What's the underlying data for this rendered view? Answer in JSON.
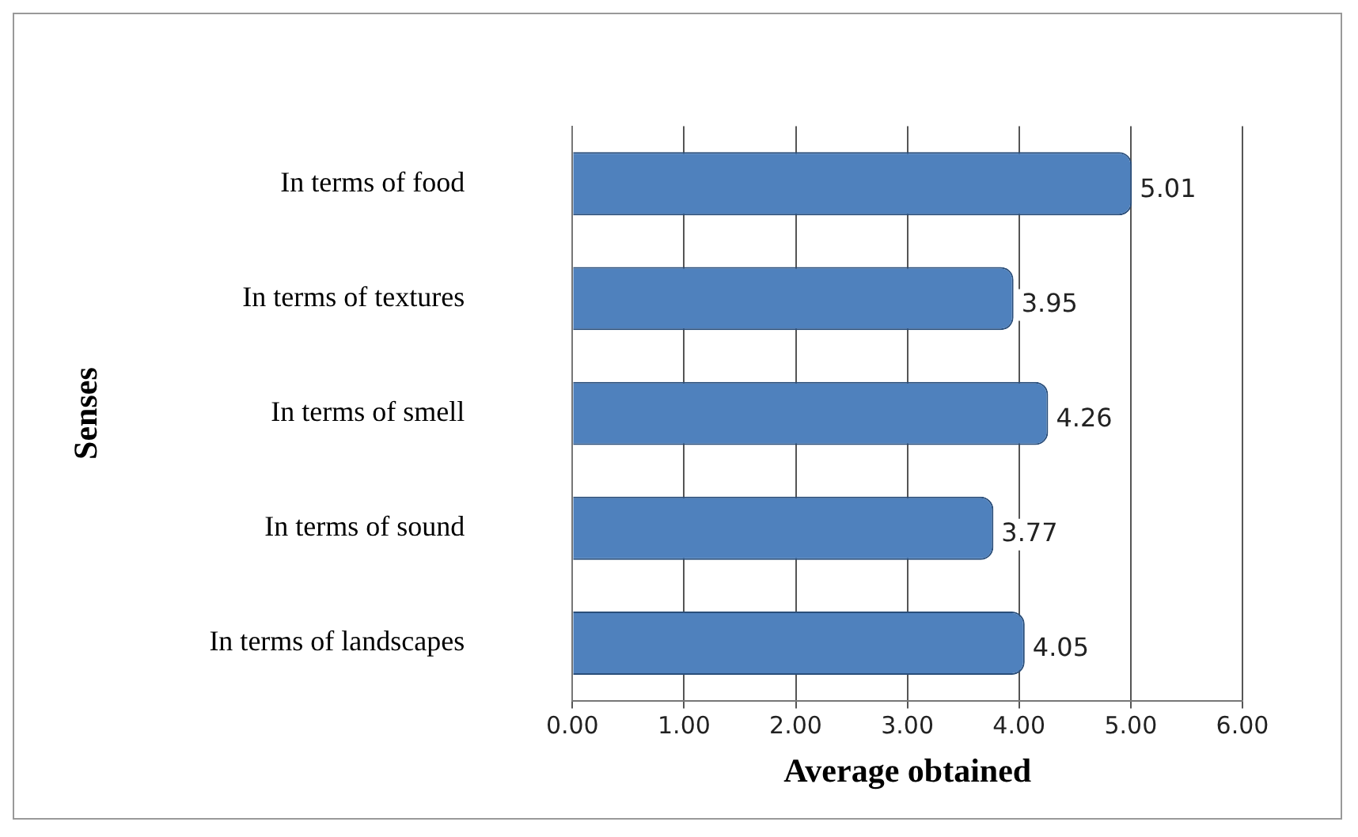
{
  "chart_data": {
    "type": "bar",
    "orientation": "horizontal",
    "xlabel": "Average obtained",
    "ylabel": "Senses",
    "categories": [
      "In terms of food",
      "In terms of textures",
      "In terms of smell",
      "In terms of sound",
      "In terms of landscapes"
    ],
    "values": [
      5.01,
      3.95,
      4.26,
      3.77,
      4.05
    ],
    "color": "#4f81bd",
    "xlim": [
      0,
      6
    ],
    "xticks": [
      {
        "value": 0,
        "label": "0.00"
      },
      {
        "value": 1,
        "label": "1.00"
      },
      {
        "value": 2,
        "label": "2.00"
      },
      {
        "value": 3,
        "label": "3.00"
      },
      {
        "value": 4,
        "label": "4.00"
      },
      {
        "value": 5,
        "label": "5.00"
      },
      {
        "value": 6,
        "label": "6.00"
      }
    ],
    "grid": "x",
    "data_labels": true,
    "legend": false
  }
}
